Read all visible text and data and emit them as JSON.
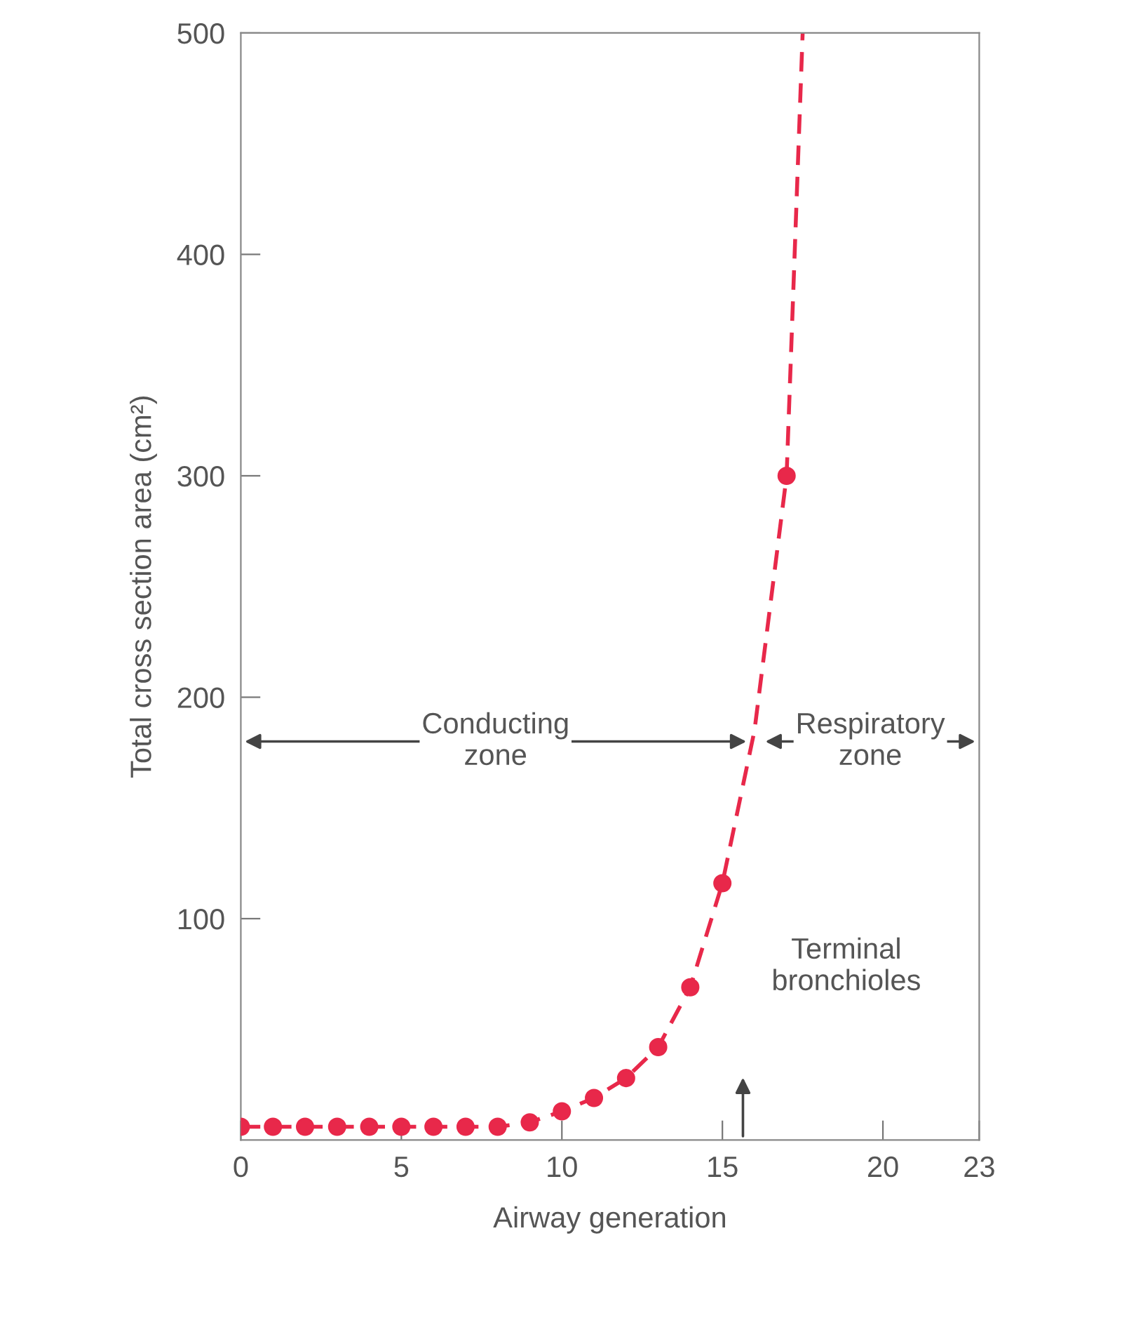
{
  "chart_data": {
    "type": "scatter",
    "xlabel": "Airway generation",
    "ylabel": "Total cross section area (cm²)",
    "xlim": [
      0,
      23
    ],
    "xticks": [
      0,
      5,
      10,
      15,
      20,
      23
    ],
    "ylim": [
      0,
      500
    ],
    "yticks": [
      100,
      200,
      300,
      400,
      500
    ],
    "grid": false,
    "series": [
      {
        "color": "#e8284a",
        "marker": "circle",
        "x": [
          0,
          1,
          2,
          3,
          4,
          5,
          6,
          7,
          8,
          9,
          10,
          11,
          12,
          13,
          14,
          15,
          17
        ],
        "values": [
          6,
          6,
          6,
          6,
          6,
          6,
          6,
          6,
          6,
          8,
          13,
          19,
          28,
          42,
          69,
          116,
          300
        ]
      },
      {
        "type": "line",
        "color": "#e8284a",
        "marker": "none",
        "line_style": "dashed",
        "x": [
          0,
          8,
          9,
          10,
          11,
          12,
          13,
          14,
          15,
          16,
          17,
          17.5
        ],
        "values": [
          6,
          6,
          8,
          13,
          19,
          28,
          42,
          69,
          116,
          185,
          300,
          500
        ]
      }
    ],
    "annotations": [
      "Conducting\nzone",
      "Respiratory\nzone",
      "Terminal\nbronchioles"
    ]
  }
}
